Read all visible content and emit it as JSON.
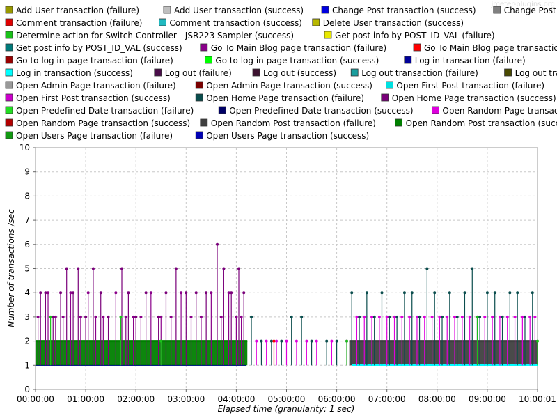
{
  "watermark": "jmeter-plugins.org",
  "chart_data": {
    "type": "line",
    "xlabel": "Elapsed time (granularity: 1 sec)",
    "ylabel": "Number of transactions /sec",
    "ylim": [
      0,
      10
    ],
    "yticks": [
      0,
      1,
      2,
      3,
      4,
      5,
      6,
      7,
      8,
      9,
      10
    ],
    "xticks": [
      "00:00:00",
      "01:00:00",
      "02:00:00",
      "03:00:00",
      "04:00:00",
      "05:00:00",
      "06:00:00",
      "07:00:00",
      "08:00:00",
      "09:00:00",
      "10:00:00"
    ],
    "last_xtick": "10:00:01",
    "grid": true,
    "legend_position": "top",
    "legend": [
      [
        {
          "name": "Add User transaction (failure)",
          "color": "#999900"
        },
        {
          "name": "Add User transaction (success)",
          "color": "#bfbfbf"
        },
        {
          "name": "Change Post transaction (success)",
          "color": "#0000e0"
        },
        {
          "name": "Change Post transaction (success)",
          "color": "#808080"
        }
      ],
      [
        {
          "name": "Comment transaction (failure)",
          "color": "#e00000"
        },
        {
          "name": "Comment transaction (success)",
          "color": "#21b9c0"
        },
        {
          "name": "Delete User transaction (success)",
          "color": "#b8b800"
        }
      ],
      [
        {
          "name": "Determine action for Switch Controller - JSR223 Sampler (success)",
          "color": "#19c219"
        },
        {
          "name": "Get post info by POST_ID_VAL (failure)",
          "color": "#e8e800"
        }
      ],
      [
        {
          "name": "Get post info by POST_ID_VAL (success)",
          "color": "#007a7a"
        },
        {
          "name": "Go To Main Blog page transaction (failure)",
          "color": "#8a008a"
        },
        {
          "name": "Go To Main Blog page transaction (success)",
          "color": "#ff0000"
        }
      ],
      [
        {
          "name": "Go to log in page transaction (failure)",
          "color": "#990000"
        },
        {
          "name": "Go to log in page transaction (success)",
          "color": "#00ff00"
        },
        {
          "name": "Log in transaction (failure)",
          "color": "#000099"
        }
      ],
      [
        {
          "name": "Log in transaction (success)",
          "color": "#00ffff"
        },
        {
          "name": "Log out (failure)",
          "color": "#4a0d4a"
        },
        {
          "name": "Log out (success)",
          "color": "#3c1230"
        },
        {
          "name": "Log out transaction (failure)",
          "color": "#1a9e9e"
        },
        {
          "name": "Log out transaction (success)",
          "color": "#4a4a00"
        }
      ],
      [
        {
          "name": "Open Admin Page transaction (failure)",
          "color": "#999999"
        },
        {
          "name": "Open Admin Page transaction (success)",
          "color": "#7a0000"
        },
        {
          "name": "Open First Post transaction (failure)",
          "color": "#00e0e0"
        }
      ],
      [
        {
          "name": "Open First Post transaction (success)",
          "color": "#cc00cc"
        },
        {
          "name": "Open Home Page transaction (failure)",
          "color": "#0a4d4d"
        },
        {
          "name": "Open Home Page transaction (success)",
          "color": "#7a007a"
        }
      ],
      [
        {
          "name": "Open Predefined Date transaction (failure)",
          "color": "#22dd22"
        },
        {
          "name": "Open Predefined Date transaction (success)",
          "color": "#000066"
        },
        {
          "name": "Open Random Page transaction (failure)",
          "color": "#dd00dd"
        }
      ],
      [
        {
          "name": "Open Random Page transaction (success)",
          "color": "#b30000"
        },
        {
          "name": "Open Random Post transaction (failure)",
          "color": "#404040"
        },
        {
          "name": "Open Random Post transaction (success)",
          "color": "#008000"
        }
      ],
      [
        {
          "name": "Open Users Page transaction (failure)",
          "color": "#119911"
        },
        {
          "name": "Open Users Page transaction (success)",
          "color": "#0000b3"
        }
      ]
    ],
    "series": [
      {
        "name": "Open Users Page transaction (success)",
        "color": "#0000b3",
        "x": [
          0,
          4.2
        ],
        "y": [
          1,
          1
        ]
      },
      {
        "name": "Open Random Post transaction (success)",
        "color": "#008000",
        "x": [
          0,
          4.22
        ],
        "y": [
          2,
          2
        ]
      },
      {
        "name": "Open Random Post transaction (failure)",
        "color": "#404040",
        "x": [
          6.25,
          10
        ],
        "y": [
          2,
          2
        ]
      },
      {
        "name": "Log in transaction (success)",
        "color": "#00ffff",
        "x": [
          6.3,
          10
        ],
        "y": [
          1,
          1
        ]
      }
    ],
    "spikes": [
      {
        "name": "Open Home Page transaction (success)",
        "color": "#7a007a",
        "x": [
          0.1,
          0.2,
          0.35,
          0.5,
          0.62,
          0.75,
          0.85,
          1.0,
          1.15,
          1.3,
          1.45,
          1.72,
          1.85,
          2.0,
          2.2,
          2.45,
          2.6,
          2.8,
          3.0,
          3.2,
          3.4,
          3.62,
          3.75,
          3.9,
          4.05,
          4.15
        ],
        "y": [
          4,
          4,
          3,
          4,
          5,
          4,
          5,
          3,
          5,
          4,
          3,
          5,
          4,
          3,
          4,
          3,
          4,
          5,
          4,
          4,
          4,
          6,
          5,
          4,
          5,
          4
        ]
      },
      {
        "name": "Go To Main Blog page transaction (failure)",
        "color": "#8a008a",
        "x": [
          0.05,
          0.25,
          0.4,
          0.55,
          0.7,
          0.9,
          1.05,
          1.2,
          1.35,
          1.6,
          1.8,
          1.95,
          2.1,
          2.3,
          2.5,
          2.7,
          2.9,
          3.1,
          3.3,
          3.5,
          3.7,
          3.85,
          4.0,
          4.1
        ],
        "y": [
          3,
          4,
          3,
          3,
          4,
          3,
          4,
          3,
          3,
          4,
          3,
          3,
          3,
          4,
          3,
          3,
          4,
          3,
          3,
          4,
          3,
          4,
          3,
          3
        ]
      },
      {
        "name": "Open Home Page transaction (failure)",
        "color": "#0a4d4d",
        "x": [
          4.3,
          4.5,
          4.7,
          4.9,
          5.1,
          5.3,
          5.5,
          5.8,
          6.0,
          6.3,
          6.45,
          6.6,
          6.75,
          6.9,
          7.05,
          7.2,
          7.35,
          7.5,
          7.65,
          7.8,
          7.95,
          8.1,
          8.25,
          8.4,
          8.55,
          8.7,
          8.85,
          9.0,
          9.15,
          9.3,
          9.45,
          9.6,
          9.75,
          9.9
        ],
        "y": [
          3,
          2,
          2,
          2,
          3,
          3,
          2,
          2,
          2,
          4,
          3,
          4,
          3,
          4,
          3,
          3,
          4,
          4,
          3,
          5,
          4,
          3,
          4,
          3,
          4,
          5,
          3,
          4,
          4,
          3,
          4,
          4,
          3,
          4
        ]
      },
      {
        "name": "Open Random Page transaction (failure)",
        "color": "#dd00dd",
        "x": [
          4.4,
          4.6,
          4.8,
          5.0,
          5.2,
          5.4,
          5.6,
          5.9,
          6.2,
          6.4,
          6.55,
          6.7,
          6.85,
          7.0,
          7.15,
          7.3,
          7.45,
          7.6,
          7.75,
          7.9,
          8.05,
          8.2,
          8.35,
          8.5,
          8.65,
          8.8,
          8.95,
          9.1,
          9.25,
          9.4,
          9.55,
          9.7,
          9.85,
          9.95
        ],
        "y": [
          2,
          2,
          2,
          2,
          2,
          2,
          2,
          2,
          2,
          3,
          3,
          3,
          3,
          3,
          3,
          3,
          3,
          3,
          3,
          3,
          3,
          3,
          3,
          3,
          3,
          3,
          3,
          3,
          3,
          3,
          3,
          3,
          3,
          3
        ]
      },
      {
        "name": "Determine action for Switch Controller - JSR223 Sampler (success)",
        "color": "#19c219",
        "x": [
          0.3,
          1.7,
          2.5,
          6.2,
          8.8,
          10
        ],
        "y": [
          3,
          3,
          2,
          2,
          3,
          2
        ]
      },
      {
        "name": "Go To Main Blog page transaction (success)",
        "color": "#ff0000",
        "x": [
          4.75
        ],
        "y": [
          2
        ]
      }
    ]
  }
}
